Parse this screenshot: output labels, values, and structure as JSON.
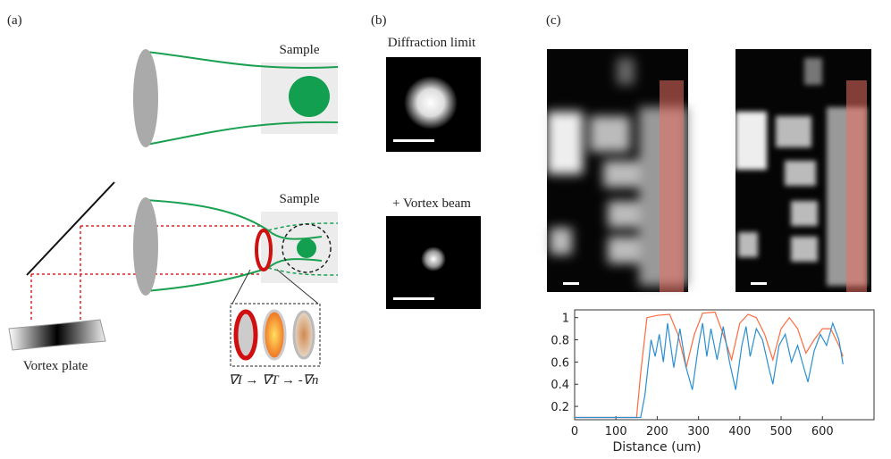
{
  "panel_labels": [
    "(a)",
    "(b)",
    "(c)"
  ],
  "panel_a": {
    "sample_labels": [
      "Sample",
      "Sample"
    ],
    "vortex_plate": "Vortex plate",
    "relation": "∇I → ∇T → -∇n"
  },
  "panel_b": {
    "top_label": "Diffraction limit",
    "bottom_label": "+ Vortex beam"
  },
  "chart_data": {
    "type": "line",
    "x_label": "Distance (um)",
    "xlim": [
      0,
      725
    ],
    "xticks": [
      0,
      100,
      200,
      300,
      400,
      500,
      600
    ],
    "ylim": [
      0.08,
      1.07
    ],
    "yticks": [
      0.2,
      0.4,
      0.6,
      0.8,
      1
    ],
    "series": [
      {
        "color": "#ff6a3d",
        "x": [
          0,
          100,
          150,
          160,
          175,
          200,
          230,
          250,
          270,
          290,
          310,
          340,
          360,
          380,
          400,
          420,
          440,
          460,
          480,
          500,
          520,
          540,
          560,
          580,
          600,
          620,
          640,
          650
        ],
        "values": [
          0.1,
          0.1,
          0.1,
          0.5,
          1.0,
          1.02,
          1.03,
          0.85,
          0.55,
          0.85,
          1.04,
          1.05,
          0.85,
          0.62,
          0.95,
          1.03,
          1.0,
          0.85,
          0.62,
          0.9,
          1.0,
          0.9,
          0.68,
          0.8,
          0.9,
          0.9,
          0.75,
          0.65
        ]
      },
      {
        "color": "#2a8fd0",
        "x": [
          0,
          100,
          160,
          170,
          185,
          195,
          205,
          215,
          225,
          240,
          255,
          270,
          285,
          300,
          310,
          320,
          330,
          345,
          360,
          375,
          390,
          405,
          415,
          425,
          440,
          455,
          470,
          480,
          495,
          510,
          525,
          540,
          555,
          565,
          580,
          595,
          610,
          625,
          640,
          650
        ],
        "values": [
          0.1,
          0.1,
          0.1,
          0.3,
          0.8,
          0.65,
          0.85,
          0.6,
          0.95,
          0.55,
          0.9,
          0.55,
          0.35,
          0.75,
          0.95,
          0.65,
          0.9,
          0.62,
          0.92,
          0.6,
          0.35,
          0.75,
          0.92,
          0.65,
          0.9,
          0.8,
          0.55,
          0.4,
          0.75,
          0.85,
          0.6,
          0.75,
          0.55,
          0.42,
          0.7,
          0.85,
          0.75,
          0.95,
          0.8,
          0.58
        ]
      }
    ]
  }
}
